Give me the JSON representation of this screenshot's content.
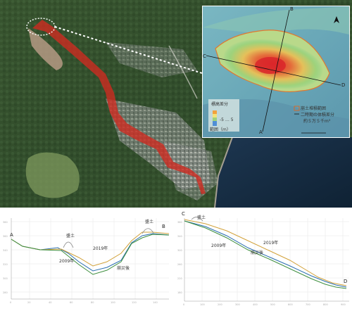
{
  "inset": {
    "legend_title": "標高差分",
    "legend_scale_label": "範囲（m）",
    "legend_tick_label": "-5 … 5",
    "deposit_legend_label": "崩土堆積範囲",
    "volume_line1": "二時期の体積差分",
    "volume_line2": "約５万５千m³",
    "points": {
      "A": "A",
      "B": "B",
      "C": "C",
      "D": "D"
    }
  },
  "profile_ab": {
    "endpoints": {
      "start": "A",
      "end": "B"
    },
    "series": [
      {
        "name": "2009年",
        "color": "#2a6fb0"
      },
      {
        "name": "2019年",
        "color": "#d2a23a"
      },
      {
        "name": "崩災後",
        "color": "#3f8f3f"
      }
    ],
    "annotation_left": "盛土",
    "annotation_right": "盛土"
  },
  "profile_cd": {
    "endpoints": {
      "start": "C",
      "end": "D"
    },
    "series": [
      {
        "name": "2009年",
        "color": "#2a6fb0"
      },
      {
        "name": "2019年",
        "color": "#d2a23a"
      },
      {
        "name": "崩災後",
        "color": "#3f8f3f"
      }
    ],
    "annotation": "盛土"
  }
}
